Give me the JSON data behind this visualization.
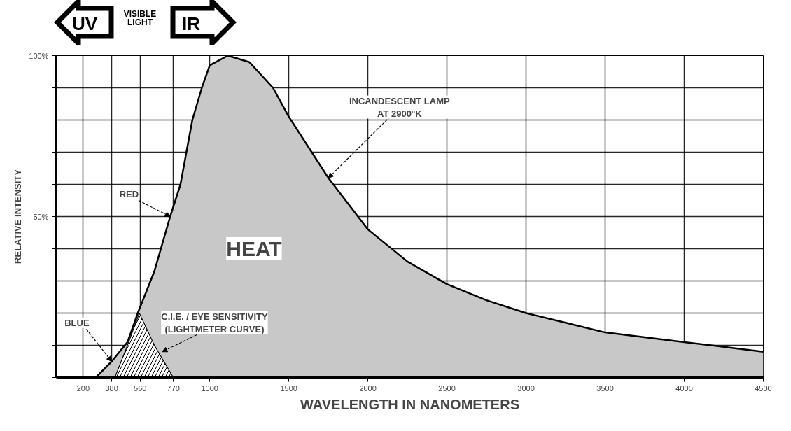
{
  "chart_data": {
    "type": "area",
    "xlabel": "WAVELENGTH IN NANOMETERS",
    "ylabel": "RELATIVE INTENSITY",
    "xlim": [
      30,
      4500
    ],
    "ylim": [
      0,
      100
    ],
    "xticks": [
      200,
      380,
      560,
      770,
      1000,
      1500,
      2000,
      2500,
      3000,
      3500,
      4000,
      4500
    ],
    "yticks": [
      {
        "value": 0,
        "label": null
      },
      {
        "value": 10,
        "label": null
      },
      {
        "value": 20,
        "label": null
      },
      {
        "value": 30,
        "label": null
      },
      {
        "value": 40,
        "label": null
      },
      {
        "value": 50,
        "label": "50%"
      },
      {
        "value": 60,
        "label": null
      },
      {
        "value": 70,
        "label": null
      },
      {
        "value": 80,
        "label": null
      },
      {
        "value": 90,
        "label": null
      },
      {
        "value": 100,
        "label": "100%"
      }
    ],
    "grid": true,
    "series": [
      {
        "color": "#c8c8c8",
        "x": [
          280,
          380,
          480,
          545,
          650,
          750,
          815,
          890,
          950,
          1000,
          1115,
          1250,
          1400,
          1500,
          1750,
          2000,
          2250,
          2500,
          2750,
          3000,
          3250,
          3500,
          3750,
          4000,
          4250,
          4500
        ],
        "values": [
          0,
          5,
          11,
          20,
          33,
          50,
          60,
          80,
          90,
          97,
          100,
          98,
          90,
          81,
          62,
          46,
          36,
          29,
          24,
          20,
          17,
          14,
          12.5,
          11,
          9.5,
          8
        ]
      },
      {
        "color": "#ffffff",
        "x": [
          400,
          480,
          555,
          650,
          770
        ],
        "values": [
          0,
          10,
          20,
          10,
          0
        ]
      }
    ],
    "annotations": [
      "UV",
      "VISIBLE\nLIGHT",
      "IR",
      "HEAT",
      {
        "text": "RED",
        "x": 750,
        "y": 50
      },
      {
        "text": "BLUE",
        "x": 380,
        "y": 5
      },
      {
        "text": "C.I.E. / EYE SENSITIVITY\n(LIGHTMETER CURVE)",
        "x": 700,
        "y": 8
      },
      {
        "text": "INCANDESCENT LAMP\nAT 2900°K",
        "x": 1750,
        "y": 62
      }
    ]
  }
}
